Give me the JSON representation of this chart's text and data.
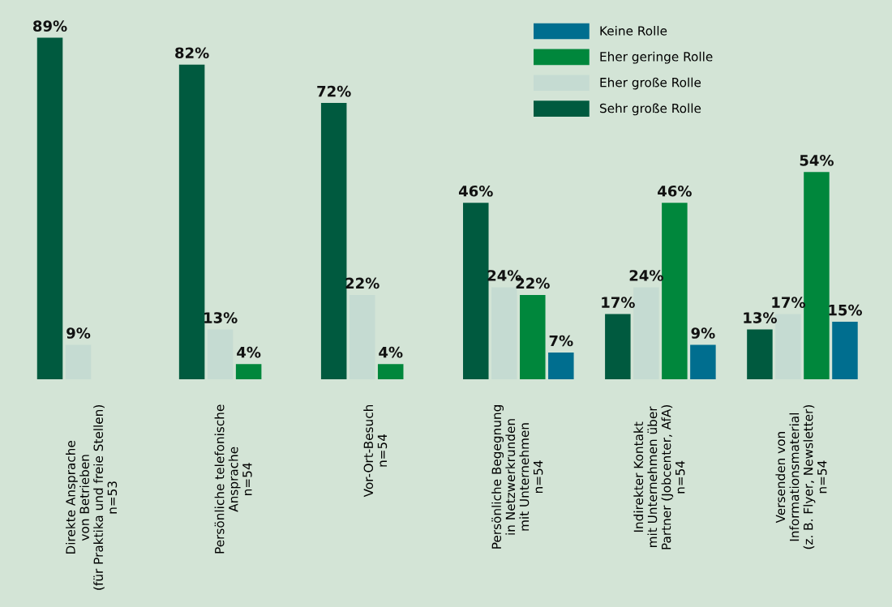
{
  "chart_data": {
    "type": "bar",
    "relative": false,
    "categories": [
      "Direkte Ansprache\nvon Betrieben\n(für Praktika und freie Stellen)\nn=53",
      "Persönliche telefonische\nAnsprache\nn=54",
      "Vor-Ort-Besuch\nn=54",
      "Persönliche Begegnung\nin Netzwerkrunden\nmit Unternehmen\nn=54",
      "Indirekter Kontakt\nmit Unternehmen über\nPartner (Jobcenter, AfA)\nn=54",
      "Versenden von\nInformationsmaterial\n(z. B. Flyer, Newsletter)\nn=54"
    ],
    "series": [
      {
        "name": "Sehr große Rolle",
        "color": "#005a3f",
        "values": [
          89,
          82,
          72,
          46,
          17,
          13
        ],
        "value_labels": [
          "89%",
          "82%",
          "72%",
          "46%",
          "17%",
          "13%"
        ]
      },
      {
        "name": "Eher große Rolle",
        "color": "#c5dbd2",
        "values": [
          9,
          13,
          22,
          24,
          24,
          17
        ],
        "value_labels": [
          "9%",
          "13%",
          "22%",
          "24%",
          "24%",
          "17%"
        ]
      },
      {
        "name": "Eher geringe Rolle",
        "color": "#00873c",
        "values": [
          0,
          4,
          4,
          22,
          46,
          54
        ],
        "value_labels": [
          null,
          "4%",
          "4%",
          "22%",
          "46%",
          "54%"
        ]
      },
      {
        "name": "Keine Rolle",
        "color": "#006e8f",
        "values": [
          0,
          0,
          0,
          7,
          9,
          15
        ],
        "value_labels": [
          null,
          null,
          null,
          "7%",
          "9%",
          "15%"
        ]
      }
    ],
    "legend": "top right",
    "tick_labels": "x"
  }
}
